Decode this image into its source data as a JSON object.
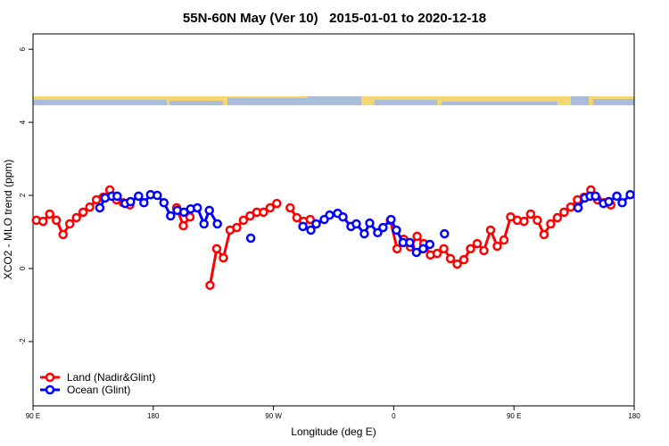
{
  "chart_data": {
    "type": "line",
    "title": "55N-60N May (Ver 10)   2015-01-01 to 2020-12-18",
    "x_label": "Longitude (deg E)",
    "y_label": "XCO2 - MLO trend (ppm)",
    "xlim": [
      90,
      540
    ],
    "ylim": [
      -3.76,
      6.42
    ],
    "xticks": [
      {
        "value": 90,
        "label": "90 E"
      },
      180,
      {
        "value": 270,
        "label": "90 W"
      },
      {
        "value": 360,
        "label": "0"
      },
      {
        "value": 450,
        "label": "90 E"
      },
      {
        "value": 540,
        "label": "180"
      }
    ],
    "yticks": [
      -2,
      0,
      2,
      4,
      6
    ],
    "legend": "bottom-left",
    "series": [
      {
        "name": "Land (Nadir&Glint)",
        "color": "#ff0000",
        "x": [
          92.5,
          97.5,
          102.5,
          107.5,
          112.5,
          117.5,
          122.5,
          127.5,
          132.5,
          137.5,
          142.5,
          147.5,
          152.5,
          157.5,
          162.5,
          165,
          197.5,
          202.5,
          207.5,
          215,
          222.5,
          227.5,
          232.5,
          237.5,
          242.5,
          247.5,
          252.5,
          257.5,
          262.5,
          267.5,
          272.5,
          275,
          282.5,
          287.5,
          292.5,
          297.5,
          300,
          357.5,
          362.5,
          367.5,
          372.5,
          377.5,
          382.5,
          387.5,
          392.5,
          397.5,
          402.5,
          407.5,
          412.5,
          417.5,
          422.5,
          427.5,
          432.5,
          437.5,
          442.5,
          447.5,
          452.5,
          457.5,
          462.5,
          467.5,
          472.5,
          477.5,
          482.5,
          487.5,
          492.5,
          497.5,
          502.5,
          507.5,
          512.5,
          517.5,
          522.5
        ],
        "values": [
          1.32,
          1.29,
          1.49,
          1.32,
          0.93,
          1.22,
          1.39,
          1.54,
          1.68,
          1.88,
          1.95,
          2.15,
          1.88,
          1.8,
          1.74,
          null,
          1.66,
          1.17,
          1.41,
          null,
          -0.46,
          0.54,
          0.29,
          1.05,
          1.12,
          1.32,
          1.44,
          1.54,
          1.54,
          1.66,
          1.78,
          null,
          1.66,
          1.39,
          1.29,
          1.34,
          null,
          1.32,
          0.54,
          0.8,
          0.59,
          0.88,
          0.68,
          0.37,
          0.41,
          0.54,
          0.27,
          0.12,
          0.24,
          0.54,
          0.68,
          0.49,
          1.05,
          0.61,
          0.78,
          1.41,
          1.32,
          1.29,
          1.49,
          1.32,
          0.93,
          1.22,
          1.39,
          1.54,
          1.68,
          1.88,
          1.95,
          2.15,
          1.88,
          1.8,
          1.74
        ]
      },
      {
        "name": "Ocean (Glint)",
        "color": "#0000ff",
        "x": [
          140,
          144,
          149,
          153,
          159,
          163,
          169,
          173,
          178,
          183,
          188,
          193,
          198,
          203,
          208,
          213,
          218,
          222,
          228,
          240,
          253,
          270,
          292,
          298,
          302,
          308,
          312,
          318,
          322,
          328,
          332,
          338,
          342,
          348,
          352,
          358,
          362,
          367,
          372,
          377,
          382,
          387,
          392,
          398,
          450,
          498,
          503,
          507,
          511,
          517,
          521,
          527,
          531,
          537
        ],
        "values": [
          1.66,
          1.93,
          1.98,
          1.98,
          1.78,
          1.83,
          1.98,
          1.8,
          2.02,
          2.0,
          1.8,
          1.44,
          1.59,
          1.54,
          1.63,
          1.66,
          1.22,
          1.59,
          1.22,
          null,
          0.83,
          null,
          1.15,
          1.05,
          1.22,
          1.34,
          1.46,
          1.51,
          1.41,
          1.15,
          1.22,
          0.95,
          1.24,
          0.98,
          1.12,
          1.34,
          1.05,
          0.71,
          0.71,
          0.44,
          0.54,
          0.66,
          null,
          0.95,
          null,
          1.66,
          1.93,
          1.98,
          1.98,
          1.78,
          1.83,
          1.98,
          1.8,
          2.02
        ]
      }
    ]
  }
}
